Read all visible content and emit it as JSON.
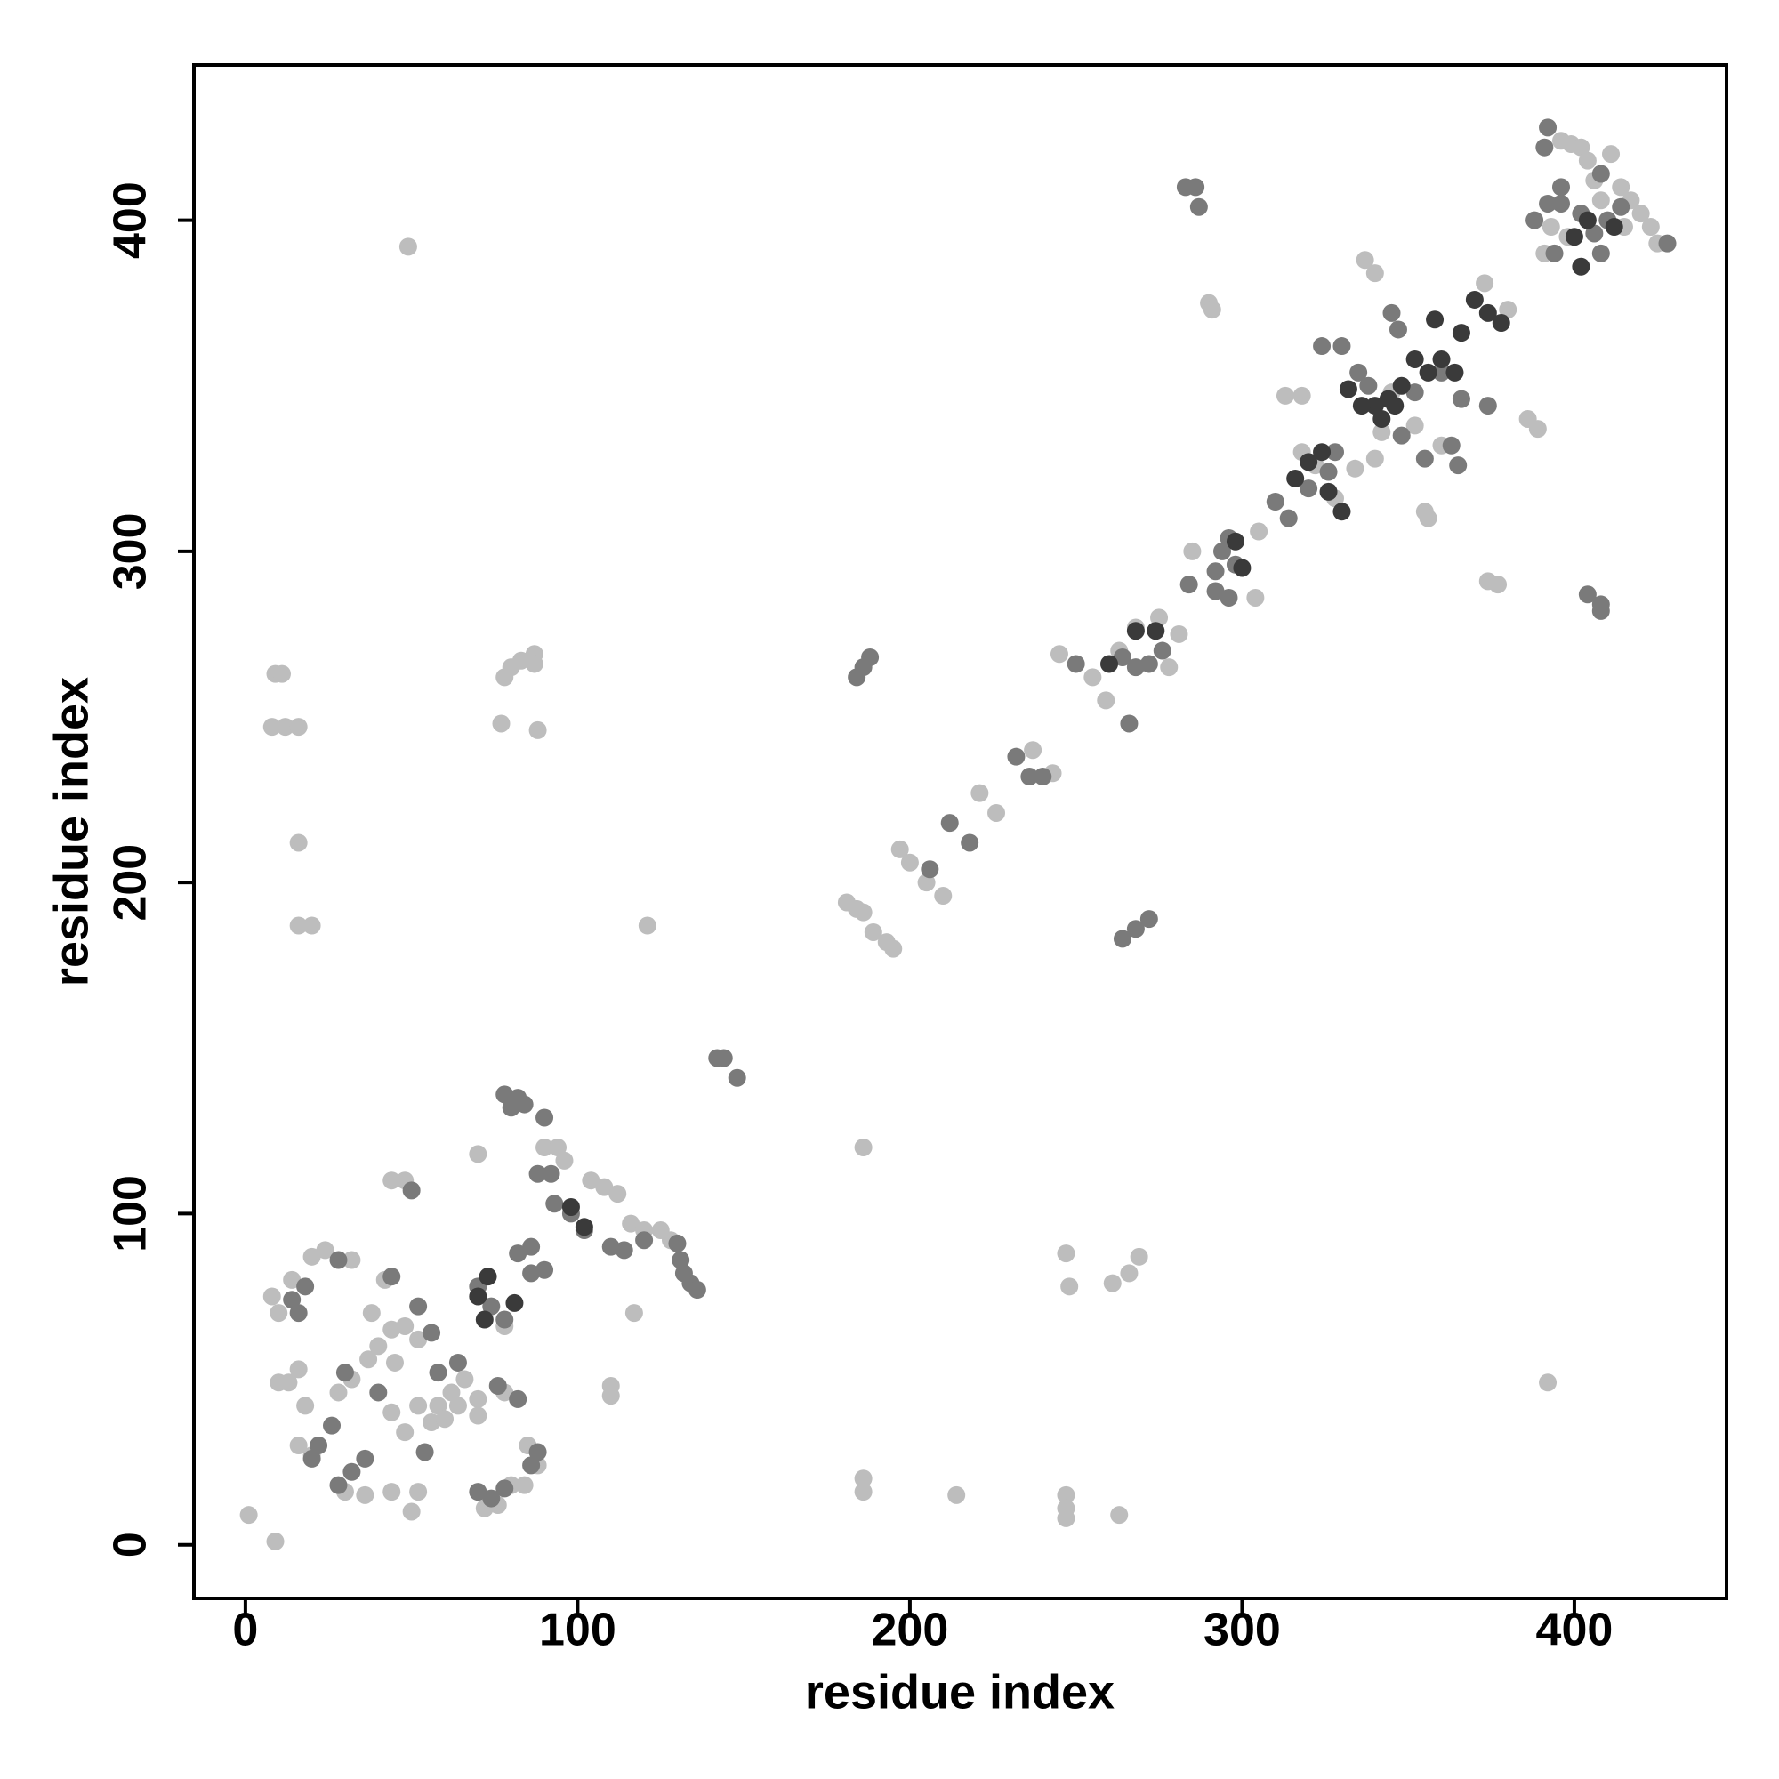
{
  "chart_data": {
    "type": "scatter",
    "xlabel": "residue index",
    "ylabel": "residue index",
    "xlim": [
      -15.5,
      445.8
    ],
    "ylim": [
      -16.2,
      446.9
    ],
    "xticks": [
      0,
      100,
      200,
      300,
      400
    ],
    "yticks": [
      0,
      100,
      200,
      300,
      400
    ],
    "grid": false,
    "series": [
      {
        "color": "#bdbdbd",
        "x": [
          49,
          9,
          11,
          8,
          12,
          16,
          16,
          16,
          20,
          78,
          80,
          83,
          87,
          87,
          77,
          88,
          121,
          186,
          1,
          9,
          186,
          186,
          214,
          247,
          247,
          247,
          263,
          247,
          248,
          261,
          266,
          269,
          392,
          117,
          110,
          110,
          181,
          184,
          186,
          189,
          193,
          195,
          197,
          200,
          205,
          210,
          221,
          226,
          237,
          243,
          245,
          255,
          259,
          263,
          268,
          275,
          278,
          281,
          285,
          290,
          291,
          305,
          304,
          313,
          318,
          318,
          322,
          328,
          334,
          337,
          340,
          340,
          342,
          345,
          352,
          355,
          356,
          360,
          374,
          377,
          380,
          373,
          386,
          389,
          393,
          396,
          399,
          402,
          404,
          406,
          408,
          411,
          414,
          417,
          420,
          423,
          425,
          415,
          398,
          391,
          8,
          10,
          14,
          20,
          24,
          32,
          16,
          18,
          16,
          20,
          28,
          32,
          37,
          40,
          44,
          48,
          52,
          45,
          44,
          48,
          52,
          58,
          62,
          66,
          70,
          56,
          60,
          64,
          70,
          78,
          82,
          85,
          88,
          80,
          84,
          36,
          30,
          44,
          50,
          52,
          72,
          76,
          44,
          48,
          70,
          78,
          90,
          94,
          96,
          104,
          108,
          112,
          116,
          120,
          125,
          128,
          42,
          38,
          10,
          13
        ],
        "values": [
          392,
          263,
          263,
          247,
          247,
          247,
          212,
          187,
          187,
          262,
          265,
          267,
          269,
          266,
          248,
          246,
          187,
          120,
          9,
          1,
          20,
          16,
          15,
          15,
          11,
          8,
          9,
          88,
          78,
          79,
          82,
          87,
          49,
          70,
          48,
          45,
          194,
          192,
          191,
          185,
          182,
          180,
          210,
          206,
          200,
          196,
          227,
          221,
          240,
          233,
          269,
          262,
          255,
          270,
          277,
          280,
          265,
          275,
          300,
          375,
          373,
          306,
          286,
          347,
          347,
          330,
          326,
          316,
          325,
          388,
          384,
          328,
          336,
          348,
          338,
          312,
          310,
          332,
          291,
          290,
          373,
          381,
          340,
          337,
          398,
          424,
          423,
          422,
          418,
          412,
          406,
          420,
          410,
          406,
          402,
          398,
          393,
          398,
          395,
          390,
          75,
          70,
          80,
          87,
          89,
          86,
          53,
          42,
          30,
          27,
          46,
          50,
          56,
          60,
          65,
          66,
          62,
          55,
          40,
          34,
          42,
          42,
          46,
          50,
          44,
          37,
          38,
          42,
          39,
          46,
          44,
          30,
          24,
          18,
          18,
          15,
          16,
          16,
          10,
          16,
          11,
          12,
          110,
          110,
          118,
          66,
          120,
          120,
          116,
          110,
          108,
          106,
          97,
          95,
          95,
          92,
          80,
          70,
          49,
          49
        ]
      },
      {
        "color": "#7a7a7a",
        "x": [
          283,
          286,
          287,
          345,
          347,
          404,
          408,
          408,
          365,
          363,
          355,
          348,
          352,
          360,
          366,
          374,
          330,
          335,
          338,
          324,
          320,
          326,
          328,
          310,
          314,
          292,
          294,
          296,
          298,
          296,
          292,
          284,
          250,
          264,
          268,
          266,
          272,
          276,
          232,
          236,
          240,
          212,
          218,
          206,
          264,
          268,
          272,
          186,
          188,
          184,
          142,
          144,
          148,
          93,
          98,
          102,
          110,
          114,
          120,
          130,
          131,
          132,
          134,
          136,
          78,
          82,
          80,
          84,
          90,
          88,
          92,
          86,
          82,
          86,
          90,
          70,
          74,
          78,
          70,
          74,
          78,
          50,
          82,
          76,
          64,
          58,
          56,
          52,
          44,
          40,
          30,
          26,
          22,
          20,
          28,
          32,
          36,
          54,
          14,
          16,
          18,
          28,
          86,
          88,
          396,
          402,
          406,
          410,
          408,
          414,
          428,
          392,
          388,
          394,
          396,
          408,
          392,
          391
        ],
        "values": [
          410,
          410,
          404,
          372,
          367,
          287,
          284,
          282,
          326,
          332,
          328,
          335,
          348,
          354,
          346,
          344,
          362,
          354,
          350,
          362,
          319,
          324,
          330,
          315,
          310,
          294,
          300,
          304,
          296,
          286,
          288,
          290,
          266,
          268,
          265,
          248,
          266,
          270,
          238,
          232,
          232,
          218,
          212,
          204,
          183,
          186,
          189,
          265,
          268,
          262,
          147,
          147,
          141,
          103,
          100,
          95,
          90,
          89,
          92,
          91,
          86,
          82,
          79,
          77,
          136,
          135,
          132,
          133,
          129,
          112,
          112,
          90,
          88,
          82,
          83,
          78,
          72,
          68,
          16,
          14,
          17,
          107,
          44,
          48,
          55,
          52,
          64,
          72,
          81,
          46,
          52,
          36,
          30,
          26,
          18,
          22,
          26,
          28,
          74,
          70,
          78,
          86,
          24,
          28,
          405,
          402,
          396,
          400,
          414,
          404,
          393,
          405,
          400,
          390,
          410,
          390,
          428,
          422
        ]
      },
      {
        "color": "#3a3a3a",
        "x": [
          73,
          81,
          72,
          70,
          98,
          102,
          344,
          346,
          340,
          348,
          352,
          356,
          360,
          364,
          370,
          374,
          378,
          366,
          320,
          324,
          326,
          330,
          316,
          404,
          400,
          412,
          402,
          300,
          298,
          274,
          268,
          260,
          358,
          336,
          342,
          332
        ],
        "values": [
          81,
          73,
          68,
          75,
          102,
          96,
          346,
          344,
          344,
          350,
          358,
          354,
          358,
          354,
          376,
          372,
          369,
          366,
          327,
          330,
          318,
          312,
          322,
          400,
          395,
          398,
          386,
          295,
          303,
          276,
          276,
          266,
          370,
          344,
          340,
          349
        ]
      }
    ]
  }
}
